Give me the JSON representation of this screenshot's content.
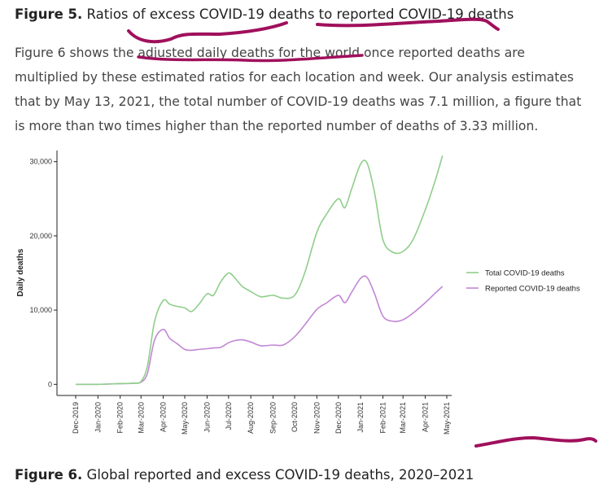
{
  "figure5_caption": {
    "label": "Figure 5.",
    "text": " Ratios of excess COVID-19 deaths to reported COVID-19 deaths"
  },
  "paragraph": {
    "lines": [
      "Figure 6 shows the adjusted daily deaths for the world once reported deaths are",
      "multiplied by these estimated ratios for each location and week. Our analysis estimates",
      "that by May 13, 2021, the total number of COVID-19 deaths was 7.1 million, a figure that",
      "is more than two times higher than the reported number of deaths of 3.33 million."
    ]
  },
  "figure6_caption": {
    "label": "Figure 6.",
    "text": " Global reported and excess COVID-19 deaths, 2020–2021"
  },
  "annotation_color": "#a0105c",
  "chart_data": {
    "type": "line",
    "title": "",
    "xlabel": "",
    "ylabel": "Daily deaths",
    "ylim": [
      -1500,
      31500
    ],
    "yticks": [
      0,
      10000,
      20000,
      30000
    ],
    "ytick_labels": [
      "0",
      "10,000",
      "20,000",
      "30,000"
    ],
    "x_ticks": [
      "Dec-2019",
      "Jan-2020",
      "Feb-2020",
      "Mar-2020",
      "Apr-2020",
      "May-2020",
      "Jun-2020",
      "Jul-2020",
      "Aug-2020",
      "Sep-2020",
      "Oct-2020",
      "Nov-2020",
      "Dec-2020",
      "Jan-2021",
      "Feb-2021",
      "Mar-2021",
      "Apr-2021",
      "May-2021"
    ],
    "x": [
      "2019-12-01",
      "2020-01-01",
      "2020-02-01",
      "2020-02-20",
      "2020-03-01",
      "2020-03-10",
      "2020-03-20",
      "2020-04-01",
      "2020-04-10",
      "2020-04-20",
      "2020-05-01",
      "2020-05-10",
      "2020-05-20",
      "2020-06-01",
      "2020-06-10",
      "2020-06-20",
      "2020-07-01",
      "2020-07-10",
      "2020-07-20",
      "2020-08-01",
      "2020-08-15",
      "2020-09-01",
      "2020-09-15",
      "2020-10-01",
      "2020-10-15",
      "2020-11-01",
      "2020-11-15",
      "2020-12-01",
      "2020-12-10",
      "2020-12-20",
      "2021-01-01",
      "2021-01-10",
      "2021-01-20",
      "2021-02-01",
      "2021-02-15",
      "2021-03-01",
      "2021-03-15",
      "2021-04-01",
      "2021-04-15",
      "2021-04-25"
    ],
    "series": [
      {
        "name": "Total COVID-19 deaths",
        "color": "#8fce8a",
        "values": [
          0,
          0,
          100,
          150,
          400,
          2500,
          8500,
          11300,
          10800,
          10500,
          10300,
          9800,
          10700,
          12200,
          12000,
          13800,
          15000,
          14300,
          13200,
          12500,
          11800,
          12000,
          11600,
          12000,
          15000,
          20500,
          23000,
          25000,
          23800,
          26500,
          29700,
          29800,
          26000,
          19500,
          17800,
          17900,
          19500,
          23500,
          27500,
          30800
        ]
      },
      {
        "name": "Reported COVID-19 deaths",
        "color": "#c287d4",
        "values": [
          0,
          0,
          100,
          150,
          300,
          1500,
          6000,
          7400,
          6200,
          5500,
          4700,
          4600,
          4700,
          4800,
          4900,
          5000,
          5600,
          5900,
          6000,
          5700,
          5200,
          5300,
          5300,
          6400,
          8000,
          10100,
          11000,
          12000,
          11000,
          12500,
          14300,
          14400,
          12300,
          9200,
          8500,
          8700,
          9600,
          11000,
          12300,
          13200
        ]
      }
    ],
    "legend_position": "right",
    "grid": false
  }
}
